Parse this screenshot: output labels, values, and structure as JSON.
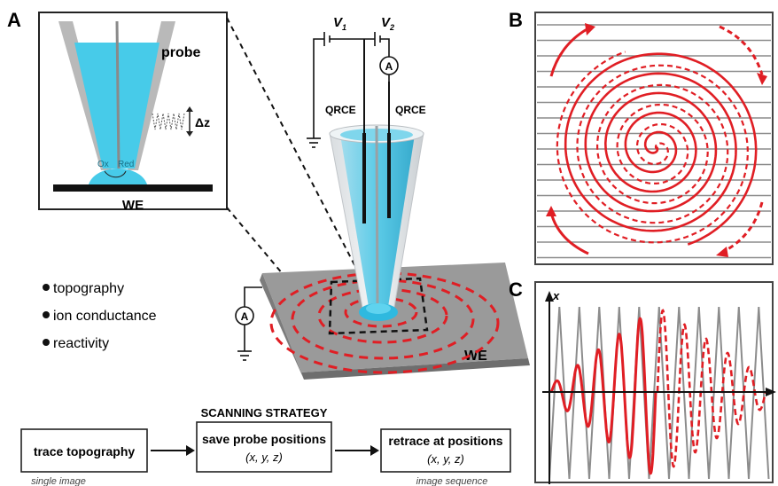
{
  "panels": {
    "a": "A",
    "b": "B",
    "c": "C"
  },
  "inset": {
    "probe": "probe",
    "delta_z": "Δz",
    "ox": "Ox",
    "red": "Red",
    "we": "WE"
  },
  "setup": {
    "v1": "V",
    "v1_sub": "1",
    "v2": "V",
    "v2_sub": "2",
    "ammeter": "A",
    "qrce_left": "QRCE",
    "qrce_right": "QRCE",
    "surface_we": "WE"
  },
  "bullets": [
    "topography",
    "ion conductance",
    "reactivity"
  ],
  "strategy": {
    "title": "SCANNING STRATEGY",
    "box1": "trace topography",
    "box1_caption": "single image",
    "box2_line1": "save probe positions",
    "box2_line2": "(x, y, z)",
    "box3_line1": "retrace at positions",
    "box3_line2": "(x, y, z)",
    "box3_caption": "image sequence"
  },
  "panel_c": {
    "axis_x": "x"
  },
  "colors": {
    "red": "#e01e24",
    "cyan": "#45c8e6",
    "gray": "#8c8c8c",
    "dark": "#111111"
  }
}
